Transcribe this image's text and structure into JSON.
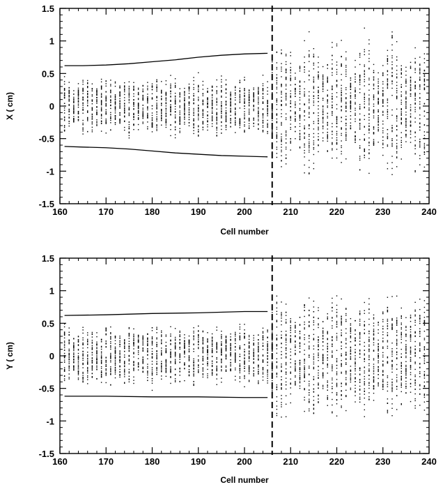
{
  "chart_data": [
    {
      "type": "scatter",
      "title": "",
      "xlabel": "Cell number",
      "ylabel": "X ( cm)",
      "xlim": [
        160,
        240
      ],
      "ylim": [
        -1.5,
        1.5
      ],
      "x_ticks": [
        "160",
        "170",
        "180",
        "190",
        "200",
        "210",
        "220",
        "230",
        "240"
      ],
      "y_ticks": [
        "1.5",
        "1",
        "0.5",
        "0",
        "-0.5",
        "-1",
        "-1.5"
      ],
      "grid": false,
      "legend": "none",
      "cell_range": [
        161,
        239
      ],
      "vline_x": 206,
      "envelope_x": [
        161,
        165,
        170,
        175,
        180,
        185,
        190,
        195,
        200,
        205
      ],
      "envelope_upper": [
        0.62,
        0.62,
        0.63,
        0.65,
        0.68,
        0.71,
        0.75,
        0.78,
        0.8,
        0.81
      ],
      "envelope_lower": [
        -0.62,
        -0.63,
        -0.64,
        -0.66,
        -0.69,
        -0.72,
        -0.74,
        -0.76,
        -0.77,
        -0.78
      ],
      "spread_before": 0.45,
      "spread_after_min": 0.55,
      "spread_after_max": 1.3,
      "beat_period": 6
    },
    {
      "type": "scatter",
      "title": "",
      "xlabel": "Cell number",
      "ylabel": "Y ( cm)",
      "xlim": [
        160,
        240
      ],
      "ylim": [
        -1.5,
        1.5
      ],
      "x_ticks": [
        "160",
        "170",
        "180",
        "190",
        "200",
        "210",
        "220",
        "230",
        "240"
      ],
      "y_ticks": [
        "1.5",
        "1",
        "0.5",
        "0",
        "-0.5",
        "-1",
        "-1.5"
      ],
      "grid": false,
      "legend": "none",
      "cell_range": [
        161,
        239
      ],
      "vline_x": 206,
      "envelope_x": [
        161,
        170,
        180,
        190,
        200,
        205
      ],
      "envelope_upper": [
        0.62,
        0.63,
        0.65,
        0.66,
        0.68,
        0.68
      ],
      "envelope_lower": [
        -0.62,
        -0.62,
        -0.63,
        -0.63,
        -0.64,
        -0.64
      ],
      "spread_before": 0.45,
      "spread_after_min": 0.6,
      "spread_after_max": 1.1,
      "beat_period": 6
    }
  ]
}
